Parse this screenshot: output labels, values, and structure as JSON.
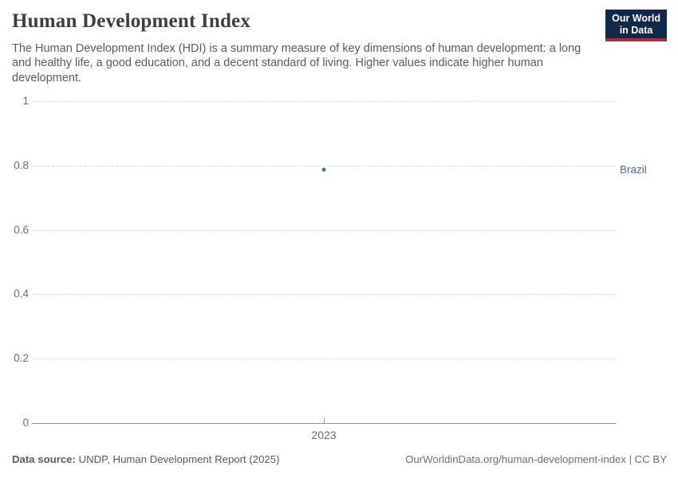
{
  "header": {
    "title": "Human Development Index",
    "subtitle": "The Human Development Index (HDI) is a summary measure of key dimensions of human development: a long and healthy life, a good education, and a decent standard of living. Higher values indicate higher human development.",
    "logo": {
      "line1": "Our World",
      "line2": "in Data"
    }
  },
  "chart_data": {
    "type": "scatter",
    "title": "Human Development Index",
    "x": [
      2023
    ],
    "series": [
      {
        "name": "Brazil",
        "values": [
          0.786
        ],
        "color": "#4c6a9c"
      }
    ],
    "xlabel": "",
    "ylabel": "",
    "ylim": [
      0,
      1
    ],
    "yticks": [
      0,
      0.2,
      0.4,
      0.6,
      0.8,
      1
    ],
    "ytick_labels": [
      "0",
      "0.2",
      "0.4",
      "0.6",
      "0.8",
      "1"
    ],
    "xtick_labels": [
      "2023"
    ],
    "grid": "horizontal-dashed",
    "legend_position": "entity-label-right"
  },
  "footer": {
    "datasource_label": "Data source:",
    "datasource_value": "UNDP, Human Development Report (2025)",
    "credit": "OurWorldinData.org/human-development-index | CC BY"
  },
  "colors": {
    "accent_blue": "#4c6a9c",
    "logo_bg": "#12284a",
    "logo_red": "#b0293c",
    "gridline": "#dcdcdc",
    "axis": "#8f8f8f",
    "text_gray": "#5b5b5b"
  }
}
